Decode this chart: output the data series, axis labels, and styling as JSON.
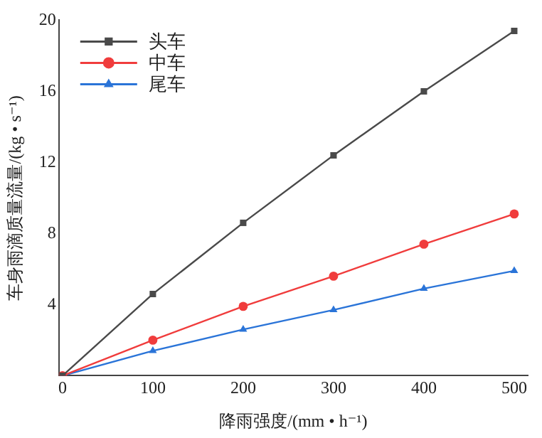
{
  "chart_data": {
    "type": "line",
    "xlabel": "降雨强度/(mm • h⁻¹)",
    "ylabel": "车身雨滴质量流量/(kg • s⁻¹)",
    "xlim": [
      -4,
      515
    ],
    "xticks": [
      0,
      100,
      200,
      300,
      400,
      500
    ],
    "ylim": [
      0,
      20
    ],
    "yticks": [
      4,
      8,
      12,
      16,
      20
    ],
    "grid": false,
    "legend": "top left",
    "line_style": "solid",
    "series": [
      {
        "name": "头车",
        "color": "#4a4a4a",
        "marker": "square",
        "x": [
          0,
          100,
          200,
          300,
          400,
          500
        ],
        "values": [
          0,
          4.6,
          8.6,
          12.4,
          16,
          19.4
        ]
      },
      {
        "name": "中车",
        "color": "#f03c3c",
        "marker": "circle",
        "x": [
          0,
          100,
          200,
          300,
          400,
          500
        ],
        "values": [
          0,
          2,
          3.9,
          5.6,
          7.4,
          9.1
        ]
      },
      {
        "name": "尾车",
        "color": "#2a74d8",
        "marker": "triangle",
        "x": [
          0,
          100,
          200,
          300,
          400,
          500
        ],
        "values": [
          0,
          1.4,
          2.6,
          3.7,
          4.9,
          5.9
        ]
      }
    ]
  }
}
